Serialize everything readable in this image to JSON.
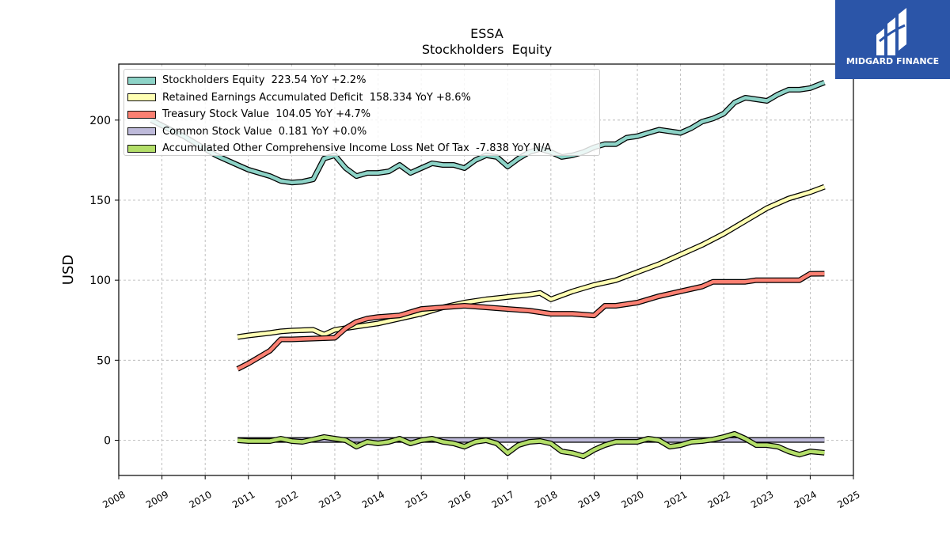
{
  "logo": {
    "text": "MIDGARD FINANCE",
    "background": "#2b55a8"
  },
  "chart_data": {
    "type": "line",
    "title": "ESSA",
    "subtitle": "Stockholders  Equity",
    "xlabel": "",
    "ylabel": "USD",
    "xlim": [
      2008.0,
      2025.0
    ],
    "ylim": [
      -22,
      235
    ],
    "x_ticks": [
      "2008",
      "2009",
      "2010",
      "2011",
      "2012",
      "2013",
      "2014",
      "2015",
      "2016",
      "2017",
      "2018",
      "2019",
      "2020",
      "2021",
      "2022",
      "2023",
      "2024",
      "2025"
    ],
    "y_ticks": [
      0,
      50,
      100,
      150,
      200
    ],
    "grid": true,
    "legend_position": "top-left",
    "series": [
      {
        "name": "Stockholders Equity  223.54 YoY +2.2%",
        "color": "#8dd3c7",
        "x": [
          2008.75,
          2009.5,
          2010.25,
          2010.75,
          2011.0,
          2011.5,
          2011.75,
          2012.0,
          2012.25,
          2012.5,
          2012.75,
          2013.0,
          2013.25,
          2013.5,
          2013.75,
          2014.0,
          2014.25,
          2014.5,
          2014.75,
          2015.0,
          2015.25,
          2015.5,
          2015.75,
          2016.0,
          2016.25,
          2016.5,
          2016.75,
          2017.0,
          2017.25,
          2017.5,
          2017.75,
          2018.0,
          2018.25,
          2018.5,
          2018.75,
          2019.0,
          2019.25,
          2019.5,
          2019.75,
          2020.0,
          2020.25,
          2020.5,
          2020.75,
          2021.0,
          2021.25,
          2021.5,
          2021.75,
          2022.0,
          2022.25,
          2022.5,
          2022.75,
          2023.0,
          2023.25,
          2023.5,
          2023.75,
          2024.0,
          2024.33
        ],
        "values": [
          200,
          190,
          178,
          172,
          169,
          165,
          162,
          161,
          161.5,
          163,
          176,
          178,
          170,
          165,
          167,
          167,
          168,
          172,
          167,
          170,
          173,
          172,
          172,
          170,
          175,
          178,
          177,
          171,
          176,
          180,
          182,
          180,
          177,
          178,
          180,
          183,
          185,
          185,
          189,
          190,
          192,
          194,
          193,
          192,
          195,
          199,
          201,
          204,
          211,
          214,
          213,
          212,
          216,
          219,
          219,
          220,
          223.54
        ]
      },
      {
        "name": "Retained Earnings Accumulated Deficit  158.334 YoY +8.6%",
        "color": "#ffffb3",
        "x": [
          2010.75,
          2011.0,
          2011.5,
          2011.75,
          2012.0,
          2012.5,
          2012.75,
          2013.0,
          2013.5,
          2014.0,
          2014.5,
          2015.0,
          2015.5,
          2016.0,
          2016.5,
          2017.0,
          2017.5,
          2017.75,
          2018.0,
          2018.5,
          2019.0,
          2019.5,
          2020.0,
          2020.5,
          2021.0,
          2021.5,
          2022.0,
          2022.5,
          2023.0,
          2023.5,
          2024.0,
          2024.33
        ],
        "values": [
          64.5,
          65.5,
          67,
          68,
          68.5,
          69,
          66,
          69,
          71,
          73,
          76,
          79,
          83,
          86,
          88,
          89.5,
          91,
          92,
          88,
          93,
          97,
          100,
          105,
          110,
          116,
          122,
          129,
          137,
          145,
          151,
          155,
          158.334
        ]
      },
      {
        "name": "Treasury Stock Value  104.05 YoY +4.7%",
        "color": "#fb8072",
        "x": [
          2010.75,
          2011.0,
          2011.5,
          2011.75,
          2012.0,
          2012.5,
          2013.0,
          2013.25,
          2013.5,
          2013.75,
          2014.0,
          2014.25,
          2014.5,
          2014.75,
          2015.0,
          2015.5,
          2016.0,
          2016.5,
          2017.0,
          2017.5,
          2018.0,
          2018.5,
          2019.0,
          2019.25,
          2019.5,
          2020.0,
          2020.5,
          2021.0,
          2021.5,
          2021.75,
          2022.0,
          2022.5,
          2022.75,
          2023.0,
          2023.5,
          2023.75,
          2024.0,
          2024.33
        ],
        "values": [
          44.5,
          48,
          56,
          63,
          63,
          63.5,
          64,
          70,
          74,
          76,
          77,
          77.5,
          78,
          80,
          82,
          83,
          84,
          83,
          82,
          81,
          79,
          79,
          78,
          84,
          84,
          86,
          90,
          93,
          96,
          99,
          99,
          99,
          100,
          100,
          100,
          100,
          104,
          104.05
        ]
      },
      {
        "name": "Common Stock Value  0.181 YoY +0.0%",
        "color": "#bebada",
        "x": [
          2010.75,
          2024.33
        ],
        "values": [
          0.181,
          0.181
        ]
      },
      {
        "name": "Accumulated Other Comprehensive Income Loss Net Of Tax  -7.838 YoY N/A",
        "color": "#b3de69",
        "x": [
          2010.75,
          2011.0,
          2011.5,
          2011.75,
          2012.0,
          2012.25,
          2012.5,
          2012.75,
          2013.0,
          2013.25,
          2013.5,
          2013.75,
          2014.0,
          2014.25,
          2014.5,
          2014.75,
          2015.0,
          2015.25,
          2015.5,
          2015.75,
          2016.0,
          2016.25,
          2016.5,
          2016.75,
          2017.0,
          2017.25,
          2017.5,
          2017.75,
          2018.0,
          2018.25,
          2018.5,
          2018.75,
          2019.0,
          2019.25,
          2019.5,
          2019.75,
          2020.0,
          2020.25,
          2020.5,
          2020.75,
          2021.0,
          2021.25,
          2021.5,
          2021.75,
          2022.0,
          2022.25,
          2022.5,
          2022.75,
          2023.0,
          2023.25,
          2023.5,
          2023.75,
          2024.0,
          2024.33
        ],
        "values": [
          0,
          -0.5,
          -0.5,
          1,
          -0.5,
          -1,
          0.5,
          2,
          1,
          0,
          -4,
          -1,
          -2,
          -1,
          1,
          -2,
          0,
          1,
          -1,
          -2,
          -4,
          -1,
          0,
          -2,
          -8,
          -3,
          -1,
          -0.5,
          -2,
          -7,
          -8,
          -10,
          -6,
          -3,
          -1,
          -1,
          -1,
          1,
          0,
          -4,
          -3,
          -1,
          -0.5,
          0.5,
          2,
          4,
          1,
          -3,
          -3,
          -4,
          -7,
          -9,
          -7,
          -7.838
        ]
      }
    ]
  }
}
